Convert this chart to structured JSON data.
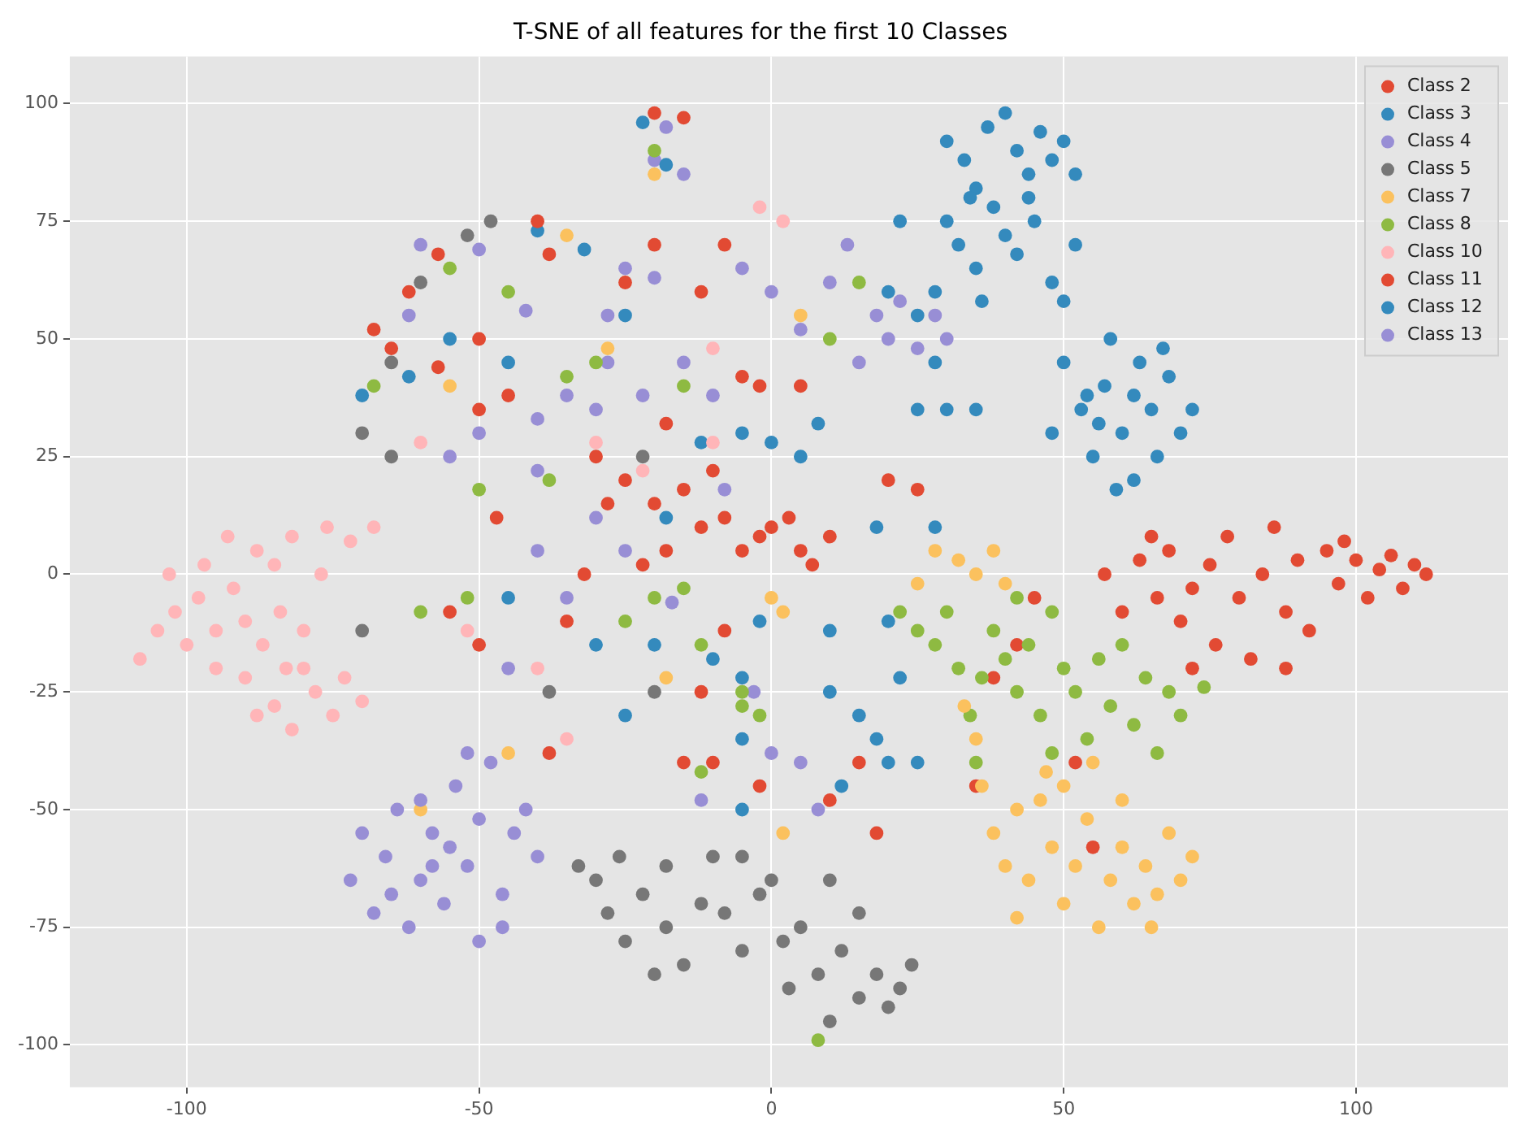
{
  "chart_data": {
    "type": "scatter",
    "title": "T-SNE of all features for the first 10 Classes",
    "xlim": [
      -120,
      126
    ],
    "ylim": [
      -109,
      110
    ],
    "xticks": [
      -100,
      -50,
      0,
      50,
      100
    ],
    "yticks": [
      -100,
      -75,
      -50,
      -25,
      0,
      25,
      50,
      75,
      100
    ],
    "grid": true,
    "legend": "top right",
    "marker": "circle",
    "series": [
      {
        "name": "Class 2",
        "color": "#e24a33",
        "x": [
          57,
          60,
          63,
          66,
          68,
          70,
          72,
          75,
          76,
          78,
          80,
          82,
          84,
          86,
          88,
          90,
          92,
          95,
          97,
          100,
          102,
          104,
          106,
          108,
          110,
          112,
          72,
          88,
          98,
          65
        ],
        "values": [
          0,
          -8,
          3,
          -5,
          5,
          -10,
          -3,
          2,
          -15,
          8,
          -5,
          -18,
          0,
          10,
          -8,
          3,
          -12,
          5,
          -2,
          3,
          -5,
          1,
          4,
          -3,
          2,
          0,
          -20,
          -20,
          7,
          8
        ]
      },
      {
        "name": "Class 3",
        "color": "#348abd",
        "x": [
          30,
          33,
          35,
          37,
          40,
          42,
          44,
          46,
          48,
          50,
          52,
          30,
          32,
          35,
          38,
          40,
          42,
          45,
          48,
          50,
          36,
          28,
          52,
          34,
          44,
          48,
          50,
          53,
          55,
          57,
          58,
          60,
          62,
          63,
          65,
          66,
          68,
          70,
          72,
          59,
          54,
          62,
          67,
          56
        ],
        "values": [
          92,
          88,
          82,
          95,
          98,
          90,
          85,
          94,
          88,
          92,
          85,
          75,
          70,
          65,
          78,
          72,
          68,
          75,
          62,
          58,
          58,
          60,
          70,
          80,
          80,
          30,
          45,
          35,
          25,
          40,
          50,
          30,
          20,
          45,
          35,
          25,
          42,
          30,
          35,
          18,
          38,
          38,
          48,
          32
        ]
      },
      {
        "name": "Class 4",
        "color": "#988ed5",
        "x": [
          -72,
          -70,
          -68,
          -66,
          -64,
          -62,
          -60,
          -58,
          -56,
          -54,
          -52,
          -50,
          -50,
          -48,
          -46,
          -44,
          -42,
          -40,
          -55,
          -60,
          -52,
          -46,
          -65,
          -58
        ],
        "values": [
          -65,
          -55,
          -72,
          -60,
          -50,
          -75,
          -65,
          -55,
          -70,
          -45,
          -62,
          -78,
          -52,
          -40,
          -68,
          -55,
          -50,
          -60,
          -58,
          -48,
          -38,
          -75,
          -68,
          -62
        ]
      },
      {
        "name": "Class 5",
        "color": "#777777",
        "x": [
          -33,
          -30,
          -28,
          -26,
          -25,
          -22,
          -20,
          -18,
          -15,
          -12,
          -10,
          -8,
          -5,
          -2,
          0,
          2,
          3,
          5,
          8,
          10,
          12,
          15,
          18,
          20,
          22,
          24,
          15,
          -5,
          -18,
          10,
          -70,
          -65,
          -60,
          -52,
          -48,
          -70,
          -65,
          -38,
          -20,
          -22
        ],
        "values": [
          -62,
          -65,
          -72,
          -60,
          -78,
          -68,
          -85,
          -75,
          -83,
          -70,
          -60,
          -72,
          -80,
          -68,
          -65,
          -78,
          -88,
          -75,
          -85,
          -95,
          -80,
          -90,
          -85,
          -92,
          -88,
          -83,
          -72,
          -60,
          -62,
          -65,
          -12,
          45,
          62,
          72,
          75,
          30,
          25,
          -25,
          -25,
          25
        ]
      },
      {
        "name": "Class 7",
        "color": "#fbc15e",
        "x": [
          36,
          38,
          40,
          42,
          44,
          46,
          48,
          50,
          52,
          54,
          56,
          58,
          60,
          62,
          64,
          66,
          68,
          70,
          72,
          47,
          55,
          60,
          65,
          42,
          50,
          35,
          33,
          28,
          32,
          35,
          38,
          40,
          25,
          0,
          2,
          -20,
          -45,
          -60,
          -55,
          -35,
          -18,
          2,
          5,
          -28
        ],
        "values": [
          -45,
          -55,
          -62,
          -50,
          -65,
          -48,
          -58,
          -70,
          -62,
          -52,
          -75,
          -65,
          -58,
          -70,
          -62,
          -68,
          -55,
          -65,
          -60,
          -42,
          -40,
          -48,
          -75,
          -73,
          -45,
          -35,
          -28,
          5,
          3,
          0,
          5,
          -2,
          -2,
          -5,
          -8,
          85,
          -38,
          -50,
          40,
          72,
          -22,
          -55,
          55,
          48
        ]
      },
      {
        "name": "Class 8",
        "color": "#8eba42",
        "x": [
          22,
          25,
          28,
          30,
          32,
          34,
          36,
          38,
          40,
          42,
          44,
          46,
          48,
          50,
          52,
          54,
          56,
          58,
          60,
          62,
          64,
          66,
          68,
          70,
          74,
          48,
          35,
          42,
          -35,
          -30,
          -20,
          -15,
          -12,
          -5,
          -25,
          -50,
          -52,
          -60,
          -68,
          -55,
          -45,
          -38,
          10,
          15,
          -15,
          -5,
          -20,
          -2,
          8,
          -12
        ],
        "values": [
          -8,
          -12,
          -15,
          -8,
          -20,
          -30,
          -22,
          -12,
          -18,
          -25,
          -15,
          -30,
          -8,
          -20,
          -25,
          -35,
          -18,
          -28,
          -15,
          -32,
          -22,
          -38,
          -25,
          -30,
          -24,
          -38,
          -40,
          -5,
          42,
          45,
          -5,
          -3,
          -15,
          -25,
          -10,
          18,
          -5,
          -8,
          40,
          65,
          60,
          20,
          50,
          62,
          40,
          -28,
          90,
          -30,
          -99,
          -42
        ]
      },
      {
        "name": "Class 10",
        "color": "#ffb5b8",
        "x": [
          -108,
          -105,
          -102,
          -100,
          -98,
          -97,
          -95,
          -93,
          -92,
          -90,
          -88,
          -87,
          -85,
          -84,
          -83,
          -82,
          -80,
          -78,
          -76,
          -75,
          -73,
          -72,
          -70,
          -68,
          -85,
          -82,
          -80,
          -77,
          -90,
          -103,
          -95,
          -88,
          -35,
          -22,
          -2,
          2,
          -10,
          -52,
          -40,
          -30,
          -10,
          -60
        ],
        "values": [
          -18,
          -12,
          -8,
          -15,
          -5,
          2,
          -12,
          8,
          -3,
          -10,
          5,
          -15,
          2,
          -8,
          -20,
          8,
          -12,
          -25,
          10,
          -30,
          -22,
          7,
          -27,
          10,
          -28,
          -33,
          -20,
          0,
          -22,
          0,
          -20,
          -30,
          -35,
          22,
          78,
          75,
          48,
          -12,
          -20,
          28,
          28,
          28
        ]
      },
      {
        "name": "Class 11",
        "color": "#e24a33",
        "x": [
          -25,
          -20,
          -15,
          -12,
          -8,
          -5,
          -2,
          0,
          3,
          5,
          7,
          10,
          -10,
          -18,
          -28,
          -5,
          -2,
          5,
          -45,
          -50,
          -57,
          -65,
          -62,
          -57,
          -50,
          -40,
          -38,
          -20,
          -15,
          -8,
          -12,
          -25,
          20,
          25,
          -35,
          -32,
          -8,
          -2,
          10,
          15,
          -15,
          -12,
          -38,
          -55,
          -68,
          -47,
          -30,
          -22,
          -18,
          45,
          42,
          38,
          55,
          52,
          -10,
          18,
          35,
          -20,
          -50
        ],
        "values": [
          20,
          15,
          18,
          10,
          12,
          5,
          8,
          10,
          12,
          5,
          2,
          8,
          22,
          5,
          15,
          42,
          40,
          40,
          38,
          35,
          44,
          48,
          60,
          68,
          50,
          75,
          68,
          98,
          97,
          70,
          60,
          62,
          20,
          18,
          -10,
          0,
          -12,
          -45,
          -48,
          -40,
          -40,
          -25,
          -38,
          -8,
          52,
          12,
          25,
          2,
          32,
          -5,
          -15,
          -22,
          -58,
          -40,
          -40,
          -55,
          -45,
          70,
          -15
        ]
      },
      {
        "name": "Class 12",
        "color": "#348abd",
        "x": [
          -12,
          -5,
          0,
          5,
          8,
          -18,
          -30,
          -20,
          -10,
          -5,
          -2,
          10,
          15,
          18,
          20,
          25,
          22,
          20,
          10,
          12,
          -5,
          -25,
          -45,
          -40,
          -32,
          -55,
          -70,
          -62,
          -18,
          -22,
          20,
          22,
          25,
          28,
          30,
          25,
          35,
          18,
          28,
          -45,
          -25,
          -5
        ],
        "values": [
          28,
          30,
          28,
          25,
          32,
          12,
          -15,
          -15,
          -18,
          -22,
          -10,
          -25,
          -30,
          -35,
          -40,
          -40,
          -22,
          -10,
          -12,
          -45,
          -50,
          -30,
          45,
          73,
          69,
          50,
          38,
          42,
          87,
          96,
          60,
          75,
          35,
          45,
          35,
          55,
          35,
          10,
          10,
          -5,
          55,
          -35
        ]
      },
      {
        "name": "Class 13",
        "color": "#988ed5",
        "x": [
          -40,
          -35,
          -30,
          -28,
          -25,
          -20,
          -22,
          -15,
          -10,
          -5,
          0,
          5,
          10,
          13,
          15,
          18,
          20,
          22,
          25,
          28,
          30,
          -20,
          -15,
          -18,
          -42,
          -50,
          -50,
          -60,
          -40,
          -35,
          -30,
          -25,
          -17,
          5,
          0,
          8,
          -40,
          -55,
          -62,
          -3,
          -12,
          -45,
          -8,
          -28
        ],
        "values": [
          33,
          38,
          35,
          55,
          65,
          63,
          38,
          45,
          38,
          65,
          60,
          52,
          62,
          70,
          45,
          55,
          50,
          58,
          48,
          55,
          50,
          88,
          85,
          95,
          56,
          30,
          69,
          70,
          5,
          -5,
          12,
          5,
          -6,
          -40,
          -38,
          -50,
          22,
          25,
          55,
          -25,
          -48,
          -20,
          18,
          45
        ]
      }
    ]
  }
}
